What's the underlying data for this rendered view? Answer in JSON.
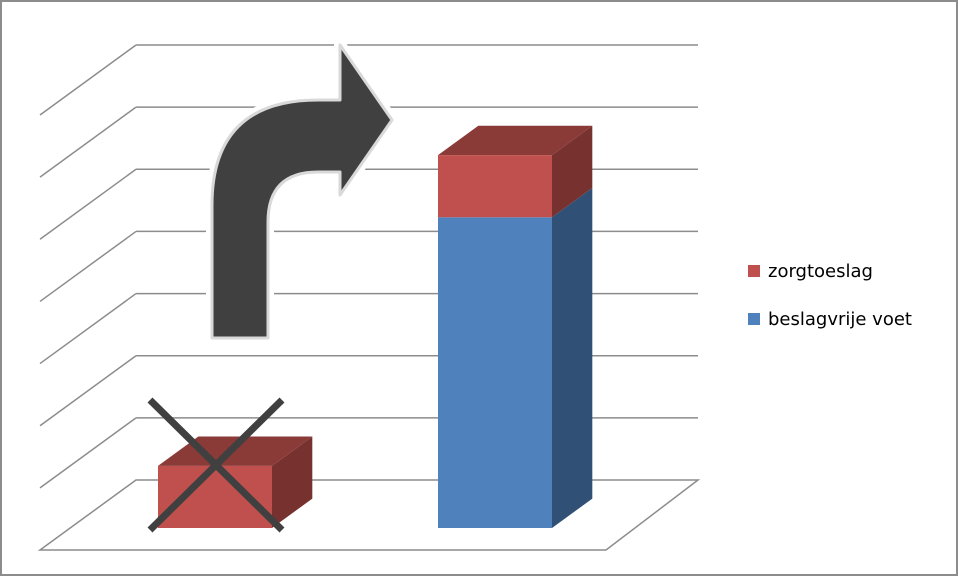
{
  "chart_data": {
    "type": "bar",
    "stacked": true,
    "three_d": true,
    "categories": [
      "",
      ""
    ],
    "series": [
      {
        "name": "beslagvrije voet",
        "values": [
          0,
          5.0
        ],
        "color": "#4f81bd"
      },
      {
        "name": "zorgtoeslag",
        "values": [
          1.0,
          1.0
        ],
        "color": "#c0504d"
      }
    ],
    "ylim": [
      0,
      7
    ],
    "grid": true,
    "legend_position": "right",
    "annotations": [
      {
        "type": "cross",
        "target": "category-1",
        "color": "#404040"
      },
      {
        "type": "curved-arrow",
        "from": "category-1",
        "to": "category-2",
        "color": "#404040"
      }
    ]
  },
  "legend": {
    "items": [
      {
        "label": "zorgtoeslag",
        "color": "#c0504d"
      },
      {
        "label": "beslagvrije voet",
        "color": "#4f81bd"
      }
    ]
  }
}
